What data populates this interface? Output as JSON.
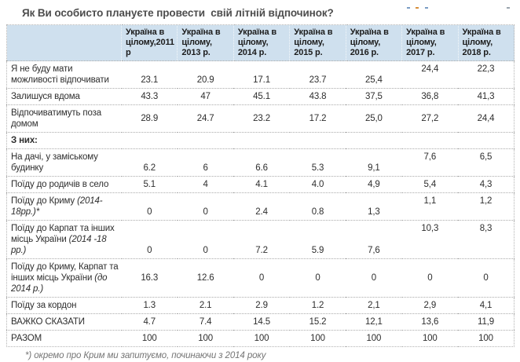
{
  "page": {
    "title": "Як Ви особисто плануєте провести  свій літній відпочинок?",
    "footnote": "*) окремо про Крим ми запитуємо, починаючи з 2014 року"
  },
  "table": {
    "columns": [
      "Україна в цілому,2011 р",
      "Україна в цілому, 2013 р.",
      "Україна в цілому, 2014 р.",
      "Україна в цілому, 2015 р.",
      "Україна в цілому, 2016 р.",
      "Україна в цілому, 2017 р.",
      "Україна в цілому, 2018 р."
    ],
    "rows": [
      {
        "label": "Я не буду мати можливості відпочивати",
        "values": [
          "23.1",
          "20.9",
          "17.1",
          "23.7",
          "25,4",
          "24,4",
          "22,3"
        ],
        "valign": "split"
      },
      {
        "label": "Залишуся вдома",
        "values": [
          "43.3",
          "47",
          "45.1",
          "43.8",
          "37,5",
          "36,8",
          "41,3"
        ]
      },
      {
        "label": "Відпочиватимуть поза домом",
        "values": [
          "28.9",
          "24.7",
          "23.2",
          "17.2",
          "25,0",
          "27,2",
          "24,4"
        ]
      },
      {
        "label": "З них:",
        "values": [
          "",
          "",
          "",
          "",
          "",
          "",
          ""
        ],
        "section": true
      },
      {
        "label": "На дачі, у заміському будинку",
        "values": [
          "6.2",
          "6",
          "6.6",
          "5.3",
          "9,1",
          "7,6",
          "6,5"
        ],
        "valign": "split"
      },
      {
        "label": "Поїду до родичів в село",
        "values": [
          "5.1",
          "4",
          "4.1",
          "4.0",
          "4,9",
          "5,4",
          "4,3"
        ]
      },
      {
        "label": "Поїду до Криму ",
        "label_italic": "(2014-18рр.)*",
        "values": [
          "0",
          "0",
          "2.4",
          "0.8",
          "1,3",
          "1,1",
          "1,2"
        ],
        "valign": "split"
      },
      {
        "label": "Поїду до Карпат та інших місць України ",
        "label_italic": "(2014 -18 рр.)",
        "values": [
          "0",
          "0",
          "7.2",
          "5.9",
          "7,6",
          "10,3",
          "8,3"
        ],
        "valign": "split"
      },
      {
        "label": "Поїду до Криму, Карпат та інших місць України ",
        "label_italic": "(до 2014 р.)",
        "values": [
          "16.3",
          "12.6",
          "0",
          "0",
          "0",
          "0",
          "0"
        ]
      },
      {
        "label": "Поїду за кордон",
        "values": [
          "1.3",
          "2.1",
          "2.9",
          "1.2",
          "2,1",
          "2,9",
          "4,1"
        ]
      },
      {
        "label": "ВАЖКО СКАЗАТИ",
        "values": [
          "4.7",
          "7.4",
          "14.5",
          "15.2",
          "12,1",
          "13,6",
          "11,9"
        ]
      },
      {
        "label": "РАЗОМ",
        "values": [
          "100",
          "100",
          "100",
          "100",
          "100",
          "100",
          "100"
        ]
      }
    ]
  },
  "colors": {
    "header_bg": "#cfe0ee",
    "table_border": "#b3b3b3",
    "title_text": "#4d4d4d",
    "footnote_text": "#757575",
    "body_text": "#2e2e2e"
  }
}
